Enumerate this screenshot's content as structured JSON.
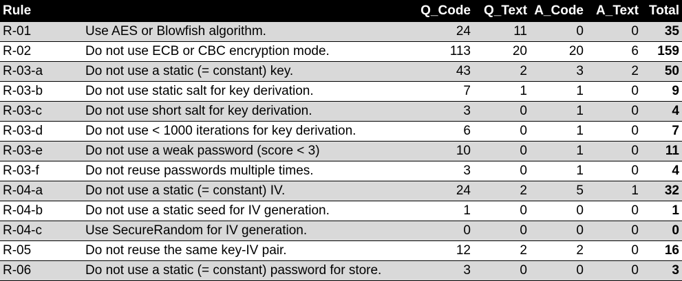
{
  "table": {
    "headers": {
      "rule": "Rule",
      "description": "",
      "q_code": "Q_Code",
      "q_text": "Q_Text",
      "a_code": "A_Code",
      "a_text": "A_Text",
      "total": "Total"
    },
    "rows": [
      {
        "rule": "R-01",
        "description": "Use AES or Blowfish algorithm.",
        "q_code": "24",
        "q_text": "11",
        "a_code": "0",
        "a_text": "0",
        "total": "35"
      },
      {
        "rule": "R-02",
        "description": "Do not use ECB or CBC encryption mode.",
        "q_code": "113",
        "q_text": "20",
        "a_code": "20",
        "a_text": "6",
        "total": "159"
      },
      {
        "rule": "R-03-a",
        "description": "Do not use a static (= constant) key.",
        "q_code": "43",
        "q_text": "2",
        "a_code": "3",
        "a_text": "2",
        "total": "50"
      },
      {
        "rule": "R-03-b",
        "description": "Do not use static salt for key derivation.",
        "q_code": "7",
        "q_text": "1",
        "a_code": "1",
        "a_text": "0",
        "total": "9"
      },
      {
        "rule": "R-03-c",
        "description": "Do not use short salt for key derivation.",
        "q_code": "3",
        "q_text": "0",
        "a_code": "1",
        "a_text": "0",
        "total": "4"
      },
      {
        "rule": "R-03-d",
        "description": "Do not use < 1000 iterations for key derivation.",
        "q_code": "6",
        "q_text": "0",
        "a_code": "1",
        "a_text": "0",
        "total": "7"
      },
      {
        "rule": "R-03-e",
        "description": "Do not use a weak password (score < 3)",
        "q_code": "10",
        "q_text": "0",
        "a_code": "1",
        "a_text": "0",
        "total": "11"
      },
      {
        "rule": "R-03-f",
        "description": "Do not reuse passwords multiple times.",
        "q_code": "3",
        "q_text": "0",
        "a_code": "1",
        "a_text": "0",
        "total": "4"
      },
      {
        "rule": "R-04-a",
        "description": "Do not use a static (= constant) IV.",
        "q_code": "24",
        "q_text": "2",
        "a_code": "5",
        "a_text": "1",
        "total": "32"
      },
      {
        "rule": "R-04-b",
        "description": "Do not use a static seed for IV generation.",
        "q_code": "1",
        "q_text": "0",
        "a_code": "0",
        "a_text": "0",
        "total": "1"
      },
      {
        "rule": "R-04-c",
        "description": "Use SecureRandom for IV generation.",
        "q_code": "0",
        "q_text": "0",
        "a_code": "0",
        "a_text": "0",
        "total": "0"
      },
      {
        "rule": "R-05",
        "description": "Do not reuse the same key-IV pair.",
        "q_code": "12",
        "q_text": "2",
        "a_code": "2",
        "a_text": "0",
        "total": "16"
      },
      {
        "rule": "R-06",
        "description": "Do not use a static (= constant) password for store.",
        "q_code": "3",
        "q_text": "0",
        "a_code": "0",
        "a_text": "0",
        "total": "3"
      }
    ]
  }
}
